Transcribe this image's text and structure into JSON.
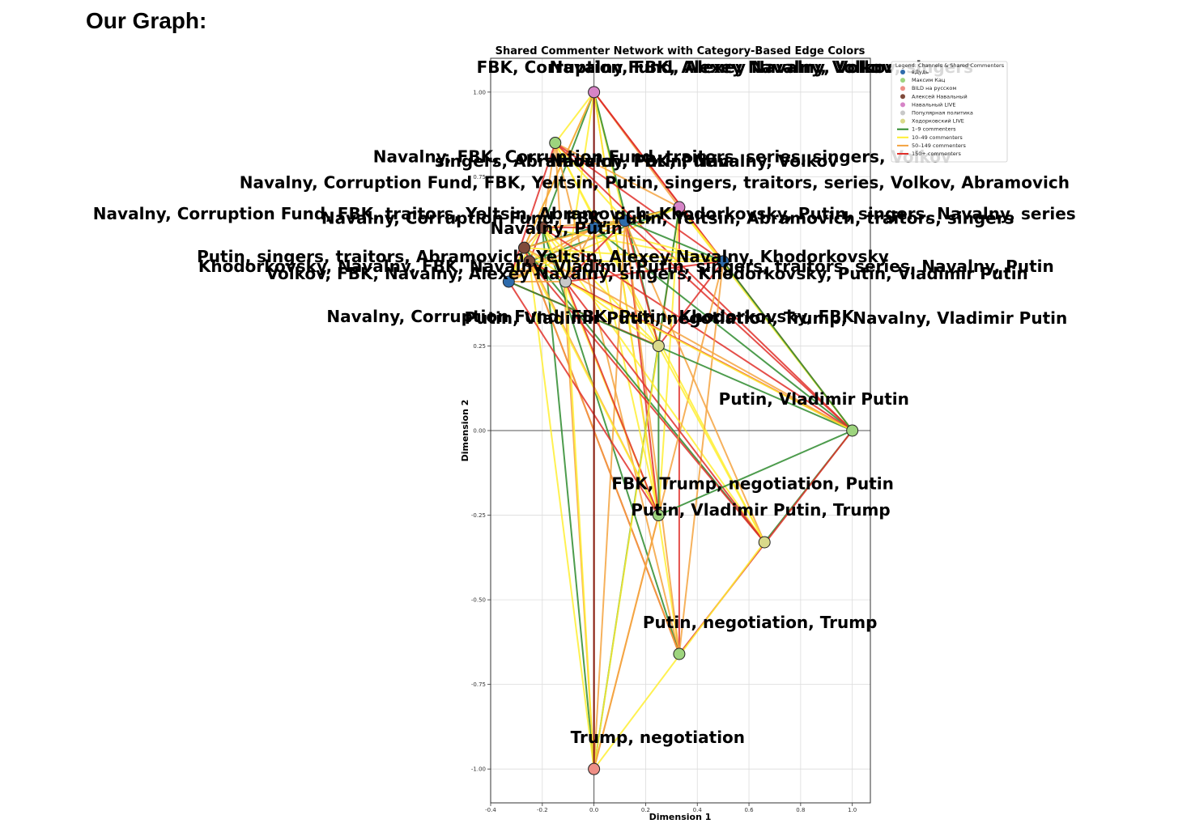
{
  "heading": "Our Graph:",
  "chart_data": {
    "type": "scatter",
    "title": "Shared Commenter Network with Category-Based Edge Colors",
    "xlabel": "Dimension 1",
    "ylabel": "Dimension 2",
    "xlim": [
      -0.4,
      1.07
    ],
    "ylim": [
      -1.1,
      1.1
    ],
    "xticks": [
      -0.4,
      -0.2,
      0.0,
      0.2,
      0.4,
      0.6,
      0.8,
      1.0
    ],
    "yticks": [
      -1.0,
      -0.75,
      -0.5,
      -0.25,
      0.0,
      0.25,
      0.5,
      0.75,
      1.0
    ],
    "grid": true,
    "legend_position": "top-right",
    "legend": {
      "title": "Legend: Channels & Shared Commenters",
      "channels": [
        {
          "name": "вДудь",
          "color": "#2e6bab"
        },
        {
          "name": "Максим Кац",
          "color": "#9dd47e"
        },
        {
          "name": "BILD на русском",
          "color": "#ee8f86"
        },
        {
          "name": "Алексей Навальный",
          "color": "#7f4a3a"
        },
        {
          "name": "Навальный LIVE",
          "color": "#d684c7"
        },
        {
          "name": "Популярная политика",
          "color": "#c8c8c8"
        },
        {
          "name": "Ходорковский LIVE",
          "color": "#d9d98a"
        }
      ],
      "edge_categories": [
        {
          "name": "1–9 commenters",
          "color": "#2e8b2e"
        },
        {
          "name": "10–49 commenters",
          "color": "#ffee33"
        },
        {
          "name": "50–149 commenters",
          "color": "#f4a340"
        },
        {
          "name": "150+ commenters",
          "color": "#e0302a"
        }
      ]
    },
    "nodes": [
      {
        "x": 0.0,
        "y": 1.0,
        "color": "#d684c7",
        "label": "FBK, Corruption Fund, Alexey Navalny, Volkov, singers"
      },
      {
        "x": 0.0,
        "y": 1.0,
        "color": "#d684c7",
        "label": "Navalny, FBK, Alexey Navalny, Volkov"
      },
      {
        "x": -0.15,
        "y": 0.85,
        "color": "#9dd47e",
        "label": "Navalny, FBK, Corruption Fund, traitors, series, singers, Volkov"
      },
      {
        "x": -0.15,
        "y": 0.85,
        "color": "#9dd47e",
        "label": "Navalny, Corruption Fund, FBK, Yeltsin, Putin, singers, traitors, series, Volkov, Abramovich"
      },
      {
        "x": 0.33,
        "y": 0.66,
        "color": "#d684c7",
        "label": "singers, Abramovich, FBK, Putin"
      },
      {
        "x": 0.33,
        "y": 0.66,
        "color": "#d684c7",
        "label": "Navalny, Putin, Navalny, Volkov"
      },
      {
        "x": 0.0,
        "y": 0.6,
        "color": "#2e6bab",
        "label": "Volkov, FBK, Navalny, Alexey Navalny, singers, Khodorkovsky, Putin, Vladimir Putin"
      },
      {
        "x": -0.2,
        "y": 0.6,
        "color": "#7f4a3a",
        "label": "Navalny, Corruption Fund, FBK, traitors, Yeltsin, Abramovich, Khodorkovsky, Putin, singers, Navalny, series"
      },
      {
        "x": 0.12,
        "y": 0.62,
        "color": "#2e6bab",
        "label": "Navalny, Corruption Fund, FBK, Putin, Yeltsin, Abramovich, traitors, singers"
      },
      {
        "x": -0.27,
        "y": 0.54,
        "color": "#7f4a3a",
        "label": "Navalny, Putin"
      },
      {
        "x": -0.25,
        "y": 0.5,
        "color": "#7f4a3a",
        "label": "Khodorkovsky, Navalny, FBK, Navalny, Vladimir Putin, singers, traitors, series, Navalny, Putin"
      },
      {
        "x": 0.5,
        "y": 0.5,
        "color": "#2e6bab",
        "label": "Putin, singers, traitors, Abramovich, Yeltsin, Alexey Navalny, Khodorkovsky"
      },
      {
        "x": -0.33,
        "y": 0.44,
        "color": "#2e6bab",
        "label": "Navalny, Corruption Fund, FBK, Putin, Khodorkovsky, FBK"
      },
      {
        "x": -0.11,
        "y": 0.44,
        "color": "#c8c8c8",
        "label": "Putin, Vladimir Putin, negotiation, Trump, Navalny, Vladimir Putin"
      },
      {
        "x": 0.25,
        "y": 0.25,
        "color": "#d9d98a",
        "label": ""
      },
      {
        "x": 1.0,
        "y": 0.0,
        "color": "#9dd47e",
        "label": "Putin, Vladimir Putin"
      },
      {
        "x": 0.25,
        "y": -0.25,
        "color": "#9dd47e",
        "label": "FBK, Trump, negotiation, Putin"
      },
      {
        "x": 0.66,
        "y": -0.33,
        "color": "#d9d98a",
        "label": "Putin, Vladimir Putin, Trump"
      },
      {
        "x": 0.33,
        "y": -0.66,
        "color": "#9dd47e",
        "label": "Putin, negotiation, Trump"
      },
      {
        "x": 0.0,
        "y": -1.0,
        "color": "#ee8f86",
        "label": "Trump, negotiation"
      }
    ]
  }
}
